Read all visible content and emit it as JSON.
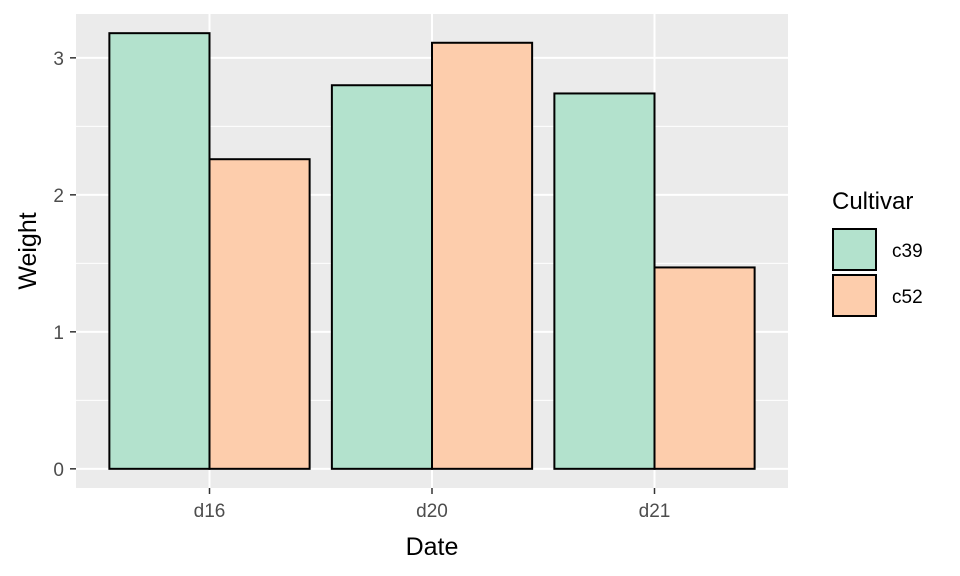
{
  "chart_data": {
    "type": "bar",
    "xlabel": "Date",
    "ylabel": "Weight",
    "categories": [
      "d16",
      "d20",
      "d21"
    ],
    "series": [
      {
        "name": "c39",
        "values": [
          3.18,
          2.8,
          2.74
        ]
      },
      {
        "name": "c52",
        "values": [
          2.26,
          3.11,
          1.47
        ]
      }
    ],
    "ylim": [
      -0.14,
      3.32
    ],
    "yticks": [
      0,
      1,
      2,
      3
    ],
    "grid": true,
    "legend": {
      "title": "Cultivar",
      "position": "right"
    },
    "colors": {
      "c39": "#b3e2cd",
      "c52": "#fdcdac",
      "panel": "#ebebeb",
      "grid": "#ffffff",
      "bar_outline": "#000000"
    }
  }
}
